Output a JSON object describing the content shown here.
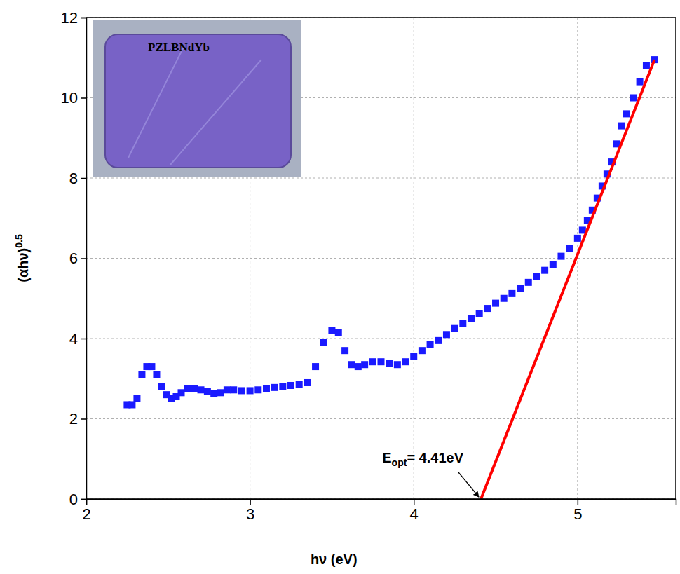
{
  "chart_data": {
    "type": "scatter",
    "x_label": "hν (eV)",
    "y_label": "(αhν)",
    "y_label_superscript": "0.5",
    "inset_label": "PZLBNdYb",
    "xlim": [
      2,
      5.6
    ],
    "xticks": [
      2,
      3,
      4,
      5
    ],
    "ylim": [
      0,
      12
    ],
    "yticks": [
      0,
      2,
      4,
      6,
      8,
      10,
      12
    ],
    "grid": true,
    "annotations": [
      {
        "text": "E",
        "subscript": "opt",
        "suffix": "= 4.41eV",
        "x": 4.41,
        "y": 0
      }
    ],
    "series": [
      {
        "type": "scatter",
        "color": "#1a1aff",
        "marker": "square",
        "x": [
          2.25,
          2.28,
          2.31,
          2.34,
          2.37,
          2.4,
          2.43,
          2.46,
          2.49,
          2.52,
          2.55,
          2.58,
          2.62,
          2.66,
          2.7,
          2.74,
          2.78,
          2.82,
          2.86,
          2.9,
          2.95,
          3.0,
          3.05,
          3.1,
          3.15,
          3.2,
          3.25,
          3.3,
          3.35,
          3.4,
          3.45,
          3.5,
          3.54,
          3.58,
          3.62,
          3.66,
          3.7,
          3.75,
          3.8,
          3.85,
          3.9,
          3.95,
          4.0,
          4.05,
          4.1,
          4.15,
          4.2,
          4.25,
          4.3,
          4.35,
          4.4,
          4.45,
          4.5,
          4.55,
          4.6,
          4.65,
          4.7,
          4.75,
          4.8,
          4.85,
          4.9,
          4.95,
          5.0,
          5.03,
          5.06,
          5.09,
          5.12,
          5.15,
          5.18,
          5.21,
          5.24,
          5.27,
          5.3,
          5.34,
          5.38,
          5.42,
          5.47
        ],
        "values": [
          2.35,
          2.35,
          2.5,
          3.1,
          3.3,
          3.3,
          3.1,
          2.8,
          2.6,
          2.5,
          2.55,
          2.65,
          2.75,
          2.75,
          2.72,
          2.68,
          2.62,
          2.65,
          2.72,
          2.72,
          2.7,
          2.7,
          2.72,
          2.75,
          2.78,
          2.8,
          2.83,
          2.86,
          2.9,
          3.3,
          3.9,
          4.2,
          4.15,
          3.7,
          3.35,
          3.3,
          3.35,
          3.42,
          3.42,
          3.38,
          3.35,
          3.42,
          3.55,
          3.7,
          3.85,
          3.95,
          4.1,
          4.25,
          4.38,
          4.5,
          4.62,
          4.75,
          4.88,
          5.0,
          5.12,
          5.25,
          5.4,
          5.55,
          5.7,
          5.85,
          6.05,
          6.25,
          6.5,
          6.7,
          6.95,
          7.2,
          7.5,
          7.8,
          8.1,
          8.4,
          8.85,
          9.3,
          9.6,
          10.0,
          10.4,
          10.8,
          10.95
        ]
      },
      {
        "type": "line",
        "color": "#ff0000",
        "line_style": "solid",
        "x": [
          4.41,
          5.47
        ],
        "values": [
          0,
          10.95
        ]
      }
    ]
  }
}
